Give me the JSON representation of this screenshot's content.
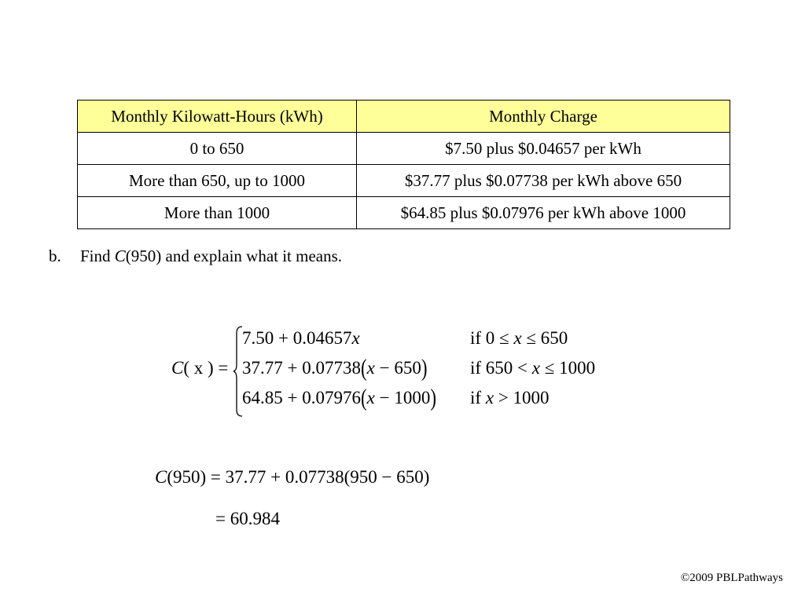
{
  "table": {
    "headers": [
      "Monthly Kilowatt-Hours (kWh)",
      "Monthly Charge"
    ],
    "rows": [
      [
        "0 to 650",
        "$7.50 plus $0.04657 per kWh"
      ],
      [
        "More than 650, up to 1000",
        "$37.77 plus $0.07738 per kWh above 650"
      ],
      [
        "More than 1000",
        "$64.85 plus $0.07976 per kWh above 1000"
      ]
    ]
  },
  "question": {
    "label": "b.",
    "prefix": "Find ",
    "function_name": "C",
    "suffix": "(950) and explain what it means."
  },
  "piecewise": {
    "lhs_name": "C",
    "lhs_arg": "( x ) =",
    "cases": [
      {
        "expr_a": "7.50 + 0.04657",
        "var": "x",
        "expr_b": "",
        "tail": "",
        "cond_pre": "if 0 ≤ ",
        "cond_var": "x",
        "cond_post": " ≤ 650"
      },
      {
        "expr_a": "37.77 + 0.07738",
        "var": "x",
        "expr_b": " − 650",
        "tail": "",
        "cond_pre": "if 650 < ",
        "cond_var": "x",
        "cond_post": " ≤ 1000"
      },
      {
        "expr_a": "64.85 + 0.07976",
        "var": "x",
        "expr_b": " − 1000",
        "tail": "",
        "cond_pre": "if ",
        "cond_var": "x",
        "cond_post": " > 1000"
      }
    ]
  },
  "evaluation": {
    "lhs_name": "C",
    "line1_rest": "(950) = 37.77 + 0.07738(950 − 650)",
    "line2": "= 60.984"
  },
  "footer": "©2009 PBLPathways"
}
